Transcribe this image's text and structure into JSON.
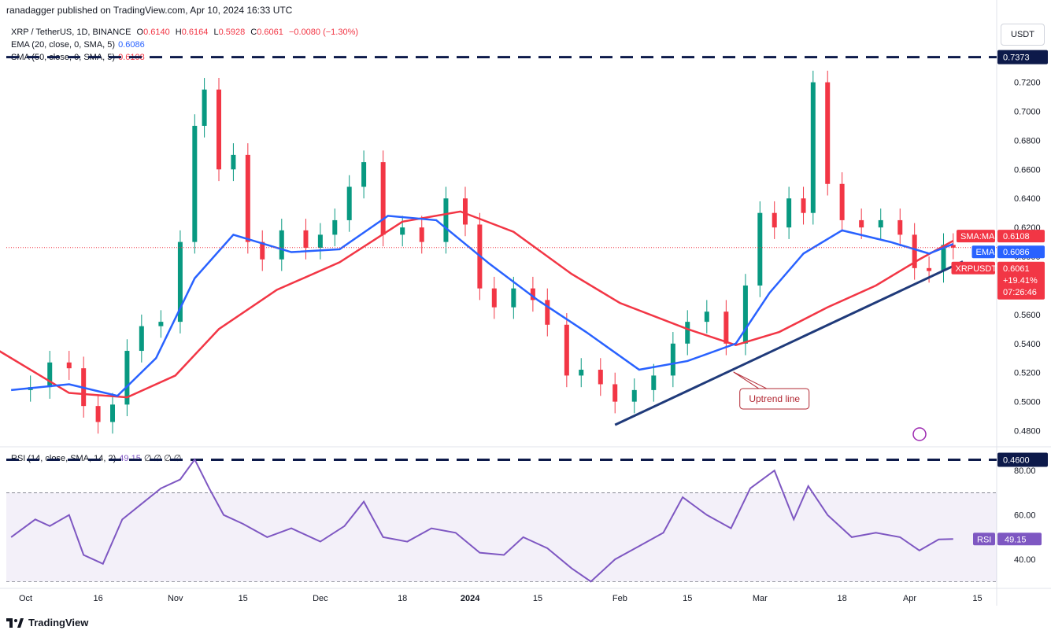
{
  "header": {
    "published": "ranadagger published on TradingView.com, Apr 10, 2024 16:33 UTC"
  },
  "legend": {
    "symbol": "XRP / TetherUS, 1D, BINANCE",
    "o_label": "O",
    "o_val": "0.6140",
    "h_label": "H",
    "h_val": "0.6164",
    "l_label": "L",
    "l_val": "0.5928",
    "c_label": "C",
    "c_val": "0.6061",
    "change": "−0.0080 (−1.30%)",
    "ema_label": "EMA (20, close, 0, SMA, 5)",
    "ema_val": "0.6086",
    "sma_label": "SMA (50, close, 0, SMA, 5)",
    "sma_val": "0.6108",
    "rsi_label": "RSI (14, close, SMA, 14, 2)",
    "rsi_val": "49.15",
    "rsi_tail": "∅ ∅ ∅ ∅"
  },
  "currency_button": "USDT",
  "footer": {
    "brand": "TradingView",
    "logo_icon": "tradingview-logo-icon"
  },
  "colors": {
    "up": "#089981",
    "down": "#f23645",
    "ema": "#2962ff",
    "sma": "#f23645",
    "rsi": "#7e57c2",
    "trend": "#1f3a7a"
  },
  "chart_data": [
    {
      "type": "candlestick",
      "symbol": "XRP / TetherUS",
      "timeframe": "1D",
      "exchange": "BINANCE",
      "ylim": [
        0.47,
        0.755
      ],
      "y_ticks": [
        "0.4800",
        "0.5000",
        "0.5200",
        "0.5400",
        "0.5600",
        "0.5800",
        "0.6000",
        "0.6200",
        "0.6400",
        "0.6600",
        "0.6800",
        "0.7000",
        "0.7200"
      ],
      "x_ticks": [
        "Oct",
        "16",
        "Nov",
        "15",
        "Dec",
        "18",
        "2024",
        "15",
        "Feb",
        "15",
        "Mar",
        "18",
        "Apr",
        "15"
      ],
      "x_ticks_bold": [
        "2024"
      ],
      "x_range": [
        "2023-09-27",
        "2024-04-19"
      ],
      "horizontal_levels": [
        {
          "value": 0.7373,
          "label": "0.7373",
          "style": "dashed"
        },
        {
          "value": 0.46,
          "label": "0.4600",
          "style": "dashed"
        }
      ],
      "trendline": {
        "from": [
          "2024-01-31",
          0.484
        ],
        "to": [
          "2024-04-12",
          0.5965
        ]
      },
      "annotation": {
        "text": "Uptrend line",
        "at": [
          "2024-03-04",
          0.502
        ]
      },
      "price_tags": [
        {
          "label": "SMA:MA",
          "value": "0.6108"
        },
        {
          "label": "EMA",
          "value": "0.6086"
        },
        {
          "label": "XRPUSDT",
          "value": "0.6061",
          "change": "+19.41%",
          "countdown": "07:26:46"
        }
      ],
      "close_series": {
        "dates": [
          "2023-09-28",
          "2023-10-02",
          "2023-10-06",
          "2023-10-10",
          "2023-10-13",
          "2023-10-16",
          "2023-10-19",
          "2023-10-22",
          "2023-10-25",
          "2023-10-29",
          "2023-11-02",
          "2023-11-05",
          "2023-11-07",
          "2023-11-10",
          "2023-11-13",
          "2023-11-16",
          "2023-11-19",
          "2023-11-23",
          "2023-11-28",
          "2023-12-01",
          "2023-12-04",
          "2023-12-07",
          "2023-12-10",
          "2023-12-14",
          "2023-12-18",
          "2023-12-22",
          "2023-12-27",
          "2023-12-31",
          "2024-01-03",
          "2024-01-06",
          "2024-01-10",
          "2024-01-14",
          "2024-01-17",
          "2024-01-21",
          "2024-01-24",
          "2024-01-28",
          "2024-01-31",
          "2024-02-04",
          "2024-02-08",
          "2024-02-12",
          "2024-02-15",
          "2024-02-19",
          "2024-02-23",
          "2024-02-27",
          "2024-03-01",
          "2024-03-04",
          "2024-03-07",
          "2024-03-10",
          "2024-03-12",
          "2024-03-15",
          "2024-03-18",
          "2024-03-22",
          "2024-03-26",
          "2024-03-30",
          "2024-04-02",
          "2024-04-05",
          "2024-04-08",
          "2024-04-10"
        ],
        "values": [
          0.508,
          0.51,
          0.527,
          0.523,
          0.497,
          0.486,
          0.498,
          0.535,
          0.552,
          0.555,
          0.61,
          0.69,
          0.715,
          0.66,
          0.67,
          0.61,
          0.598,
          0.618,
          0.606,
          0.615,
          0.625,
          0.648,
          0.665,
          0.615,
          0.62,
          0.61,
          0.64,
          0.622,
          0.578,
          0.565,
          0.578,
          0.57,
          0.553,
          0.518,
          0.522,
          0.512,
          0.5,
          0.508,
          0.518,
          0.54,
          0.555,
          0.562,
          0.54,
          0.58,
          0.63,
          0.62,
          0.64,
          0.63,
          0.72,
          0.65,
          0.625,
          0.62,
          0.625,
          0.615,
          0.592,
          0.59,
          0.608,
          0.6061
        ]
      },
      "ema20": {
        "name": "EMA",
        "dates": [
          "2023-09-28",
          "2023-10-10",
          "2023-10-20",
          "2023-10-28",
          "2023-11-05",
          "2023-11-13",
          "2023-11-25",
          "2023-12-05",
          "2023-12-15",
          "2023-12-25",
          "2024-01-05",
          "2024-01-15",
          "2024-01-25",
          "2024-02-05",
          "2024-02-15",
          "2024-02-25",
          "2024-03-03",
          "2024-03-10",
          "2024-03-18",
          "2024-03-28",
          "2024-04-05",
          "2024-04-10"
        ],
        "values": [
          0.508,
          0.512,
          0.504,
          0.53,
          0.585,
          0.615,
          0.603,
          0.605,
          0.628,
          0.625,
          0.595,
          0.57,
          0.548,
          0.522,
          0.528,
          0.54,
          0.575,
          0.602,
          0.618,
          0.61,
          0.602,
          0.6086
        ]
      },
      "sma50": {
        "name": "SMA:MA",
        "dates": [
          "2023-09-25",
          "2023-10-10",
          "2023-10-22",
          "2023-11-01",
          "2023-11-10",
          "2023-11-22",
          "2023-12-05",
          "2023-12-18",
          "2023-12-30",
          "2024-01-10",
          "2024-01-22",
          "2024-02-01",
          "2024-02-15",
          "2024-02-25",
          "2024-03-05",
          "2024-03-15",
          "2024-03-25",
          "2024-04-03",
          "2024-04-10"
        ],
        "values": [
          0.536,
          0.506,
          0.503,
          0.518,
          0.55,
          0.577,
          0.596,
          0.624,
          0.631,
          0.617,
          0.588,
          0.568,
          0.55,
          0.539,
          0.548,
          0.565,
          0.58,
          0.598,
          0.6108
        ]
      }
    },
    {
      "type": "line",
      "name": "RSI",
      "ylim": [
        28,
        90
      ],
      "y_ticks": [
        "40.00",
        "60.00",
        "80.00"
      ],
      "band": [
        30,
        70
      ],
      "current": "49.15",
      "dates": [
        "2023-09-28",
        "2023-10-03",
        "2023-10-06",
        "2023-10-10",
        "2023-10-13",
        "2023-10-17",
        "2023-10-21",
        "2023-10-25",
        "2023-10-29",
        "2023-11-02",
        "2023-11-05",
        "2023-11-08",
        "2023-11-11",
        "2023-11-15",
        "2023-11-20",
        "2023-11-25",
        "2023-12-01",
        "2023-12-06",
        "2023-12-10",
        "2023-12-14",
        "2023-12-19",
        "2023-12-24",
        "2023-12-29",
        "2024-01-03",
        "2024-01-08",
        "2024-01-12",
        "2024-01-17",
        "2024-01-22",
        "2024-01-26",
        "2024-01-31",
        "2024-02-05",
        "2024-02-10",
        "2024-02-14",
        "2024-02-19",
        "2024-02-24",
        "2024-02-28",
        "2024-03-04",
        "2024-03-08",
        "2024-03-11",
        "2024-03-15",
        "2024-03-20",
        "2024-03-25",
        "2024-03-30",
        "2024-04-03",
        "2024-04-07",
        "2024-04-10"
      ],
      "values": [
        50,
        58,
        55,
        60,
        42,
        38,
        58,
        65,
        72,
        76,
        85,
        72,
        60,
        56,
        50,
        54,
        48,
        55,
        66,
        50,
        48,
        54,
        52,
        43,
        42,
        50,
        45,
        36,
        30,
        40,
        46,
        52,
        68,
        60,
        54,
        72,
        80,
        58,
        73,
        60,
        50,
        52,
        50,
        44,
        49,
        49.15
      ]
    }
  ]
}
